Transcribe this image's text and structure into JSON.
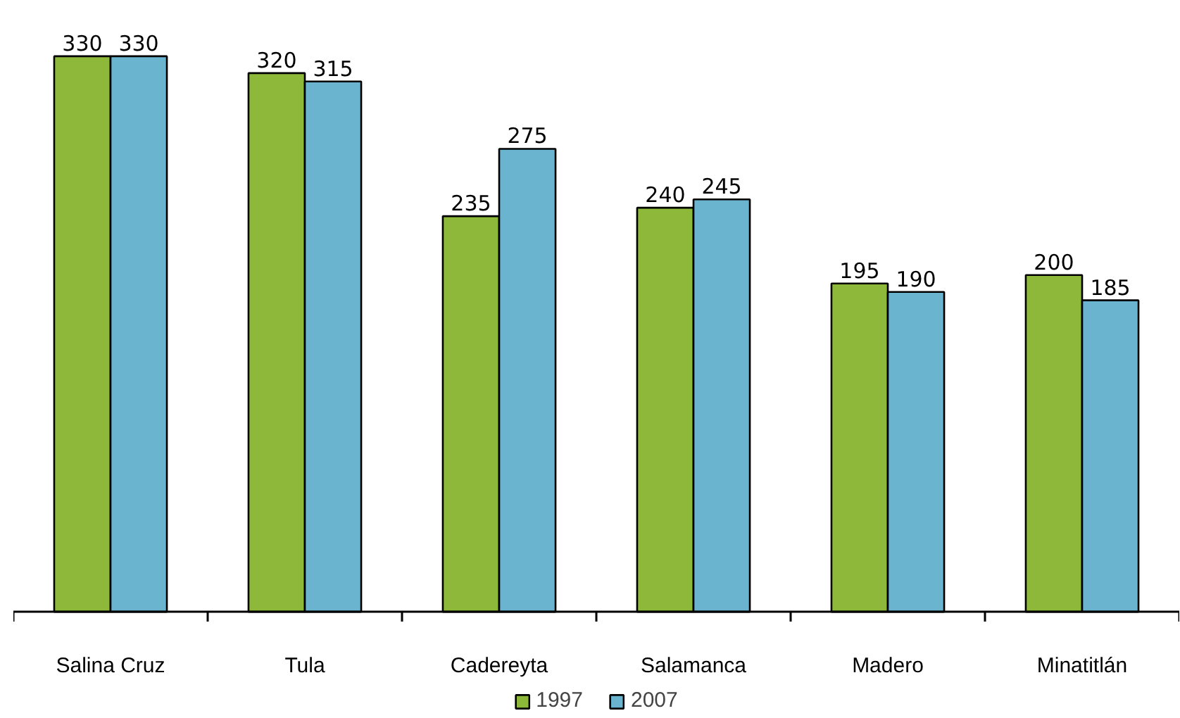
{
  "chart_data": {
    "type": "bar",
    "categories": [
      "Salina Cruz",
      "Tula",
      "Cadereyta",
      "Salamanca",
      "Madero",
      "Minatitlán"
    ],
    "series": [
      {
        "name": "1997",
        "color": "#8db83a",
        "values": [
          330,
          320,
          235,
          240,
          195,
          200
        ]
      },
      {
        "name": "2007",
        "color": "#6ab4d0",
        "values": [
          330,
          315,
          275,
          245,
          190,
          185
        ]
      }
    ],
    "data_labels": true,
    "legend": "bottom"
  }
}
